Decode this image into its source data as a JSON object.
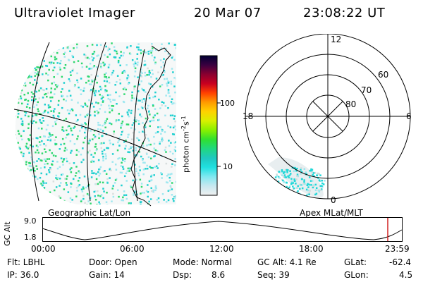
{
  "header": {
    "instrument": "Ultraviolet Imager",
    "date": "20 Mar 07",
    "time": "23:08:22 UT"
  },
  "geo_panel": {
    "caption": "Geographic Lat/Lon"
  },
  "polar_panel": {
    "caption": "Apex MLat/MLT",
    "mlt_labels": [
      "12",
      "18",
      "6",
      "0"
    ],
    "mlat_labels": [
      "60",
      "70",
      "80"
    ]
  },
  "colorbar": {
    "unit_label": "photon cm",
    "unit_exp1": "-2",
    "unit_s": "s",
    "unit_exp2": "-1",
    "ticks": [
      "100",
      "10"
    ],
    "colors": [
      "#000033",
      "#3a0040",
      "#8a0030",
      "#c80020",
      "#ff4000",
      "#ff9a00",
      "#ffd200",
      "#d8f000",
      "#88f000",
      "#30e030",
      "#20d880",
      "#20c8c0",
      "#20e0e0",
      "#80e8f0",
      "#c8e8f0",
      "#f0f0f0"
    ]
  },
  "altitude_plot": {
    "ylabel": "GC Alt",
    "yticks": [
      "9.0",
      "1.8"
    ],
    "xticks": [
      "00:00",
      "06:00",
      "12:00",
      "18:00",
      "23:59"
    ],
    "marker_color": "#d02020"
  },
  "info": {
    "filter": "Flt: LBHL",
    "ip": "IP: 36.0",
    "door": "Door: Open",
    "gain": "Gain: 14",
    "mode": "Mode: Normal",
    "dsp_label": "Dsp:",
    "dsp_value": "8.6",
    "gc_alt": "GC Alt: 4.1 Re",
    "seq": "Seq: 39",
    "glat_label": "GLat:",
    "glat_value": "-62.4",
    "glon_label": "GLon:",
    "glon_value": "4.5"
  }
}
